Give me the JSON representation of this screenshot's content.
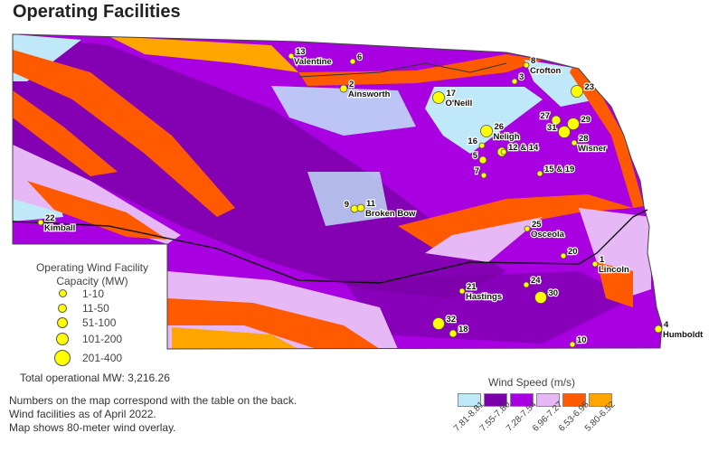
{
  "title": "Operating Facilities",
  "legend": {
    "title": "Operating Wind Facility Capacity (MW)",
    "sizes": [
      "1-10",
      "11-50",
      "51-100",
      "101-200",
      "201-400"
    ],
    "marker_color": "#ffff00"
  },
  "total": "Total operational MW: 3,216.26",
  "notes": [
    "Numbers on the map correspond with the table on the back.",
    "Wind facilities as of April 2022.",
    "Map shows 80-meter wind overlay."
  ],
  "wind_speed": {
    "title": "Wind Speed (m/s)",
    "classes": [
      {
        "range": "7.81-8.81",
        "color": "#bfe8f8"
      },
      {
        "range": "7.55-7.80",
        "color": "#7a00a8"
      },
      {
        "range": "7.28-7.54",
        "color": "#a800e0"
      },
      {
        "range": "6.96-7.27",
        "color": "#e6b8f5"
      },
      {
        "range": "6.53-6.95",
        "color": "#ff5a00"
      },
      {
        "range": "5.80-6.52",
        "color": "#ffa500"
      }
    ]
  },
  "facilities": [
    {
      "id": "13",
      "town": "Valentine",
      "capacity": "1-10"
    },
    {
      "id": "6",
      "town": "",
      "capacity": "1-10"
    },
    {
      "id": "2",
      "town": "Ainsworth",
      "capacity": "11-50"
    },
    {
      "id": "17",
      "town": "O'Neill",
      "capacity": "101-200"
    },
    {
      "id": "8",
      "town": "Crofton",
      "capacity": "1-10"
    },
    {
      "id": "3",
      "town": "",
      "capacity": "1-10"
    },
    {
      "id": "23",
      "town": "",
      "capacity": "101-200"
    },
    {
      "id": "27",
      "town": "",
      "capacity": "51-100"
    },
    {
      "id": "29",
      "town": "",
      "capacity": "101-200"
    },
    {
      "id": "31",
      "town": "",
      "capacity": "101-200"
    },
    {
      "id": "28",
      "town": "Wisner",
      "capacity": "1-10"
    },
    {
      "id": "26",
      "town": "Neligh",
      "capacity": "101-200"
    },
    {
      "id": "16",
      "town": "",
      "capacity": "1-10"
    },
    {
      "id": "12 & 14",
      "town": "",
      "capacity": "51-100"
    },
    {
      "id": "5",
      "town": "",
      "capacity": "11-50"
    },
    {
      "id": "7",
      "town": "",
      "capacity": "1-10"
    },
    {
      "id": "15 & 19",
      "town": "",
      "capacity": "1-10"
    },
    {
      "id": "22",
      "town": "Kimball",
      "capacity": "1-10"
    },
    {
      "id": "9",
      "town": "",
      "capacity": "11-50"
    },
    {
      "id": "11",
      "town": "Broken Bow",
      "capacity": "11-50"
    },
    {
      "id": "25",
      "town": "Osceola",
      "capacity": "1-10"
    },
    {
      "id": "20",
      "town": "",
      "capacity": "1-10"
    },
    {
      "id": "1",
      "town": "Lincoln",
      "capacity": "1-10"
    },
    {
      "id": "21",
      "town": "Hastings",
      "capacity": "1-10"
    },
    {
      "id": "24",
      "town": "",
      "capacity": "1-10"
    },
    {
      "id": "30",
      "town": "",
      "capacity": "101-200"
    },
    {
      "id": "32",
      "town": "",
      "capacity": "101-200"
    },
    {
      "id": "18",
      "town": "",
      "capacity": "11-50"
    },
    {
      "id": "10",
      "town": "",
      "capacity": "1-10"
    },
    {
      "id": "4",
      "town": "Humboldt",
      "capacity": "11-50"
    }
  ]
}
